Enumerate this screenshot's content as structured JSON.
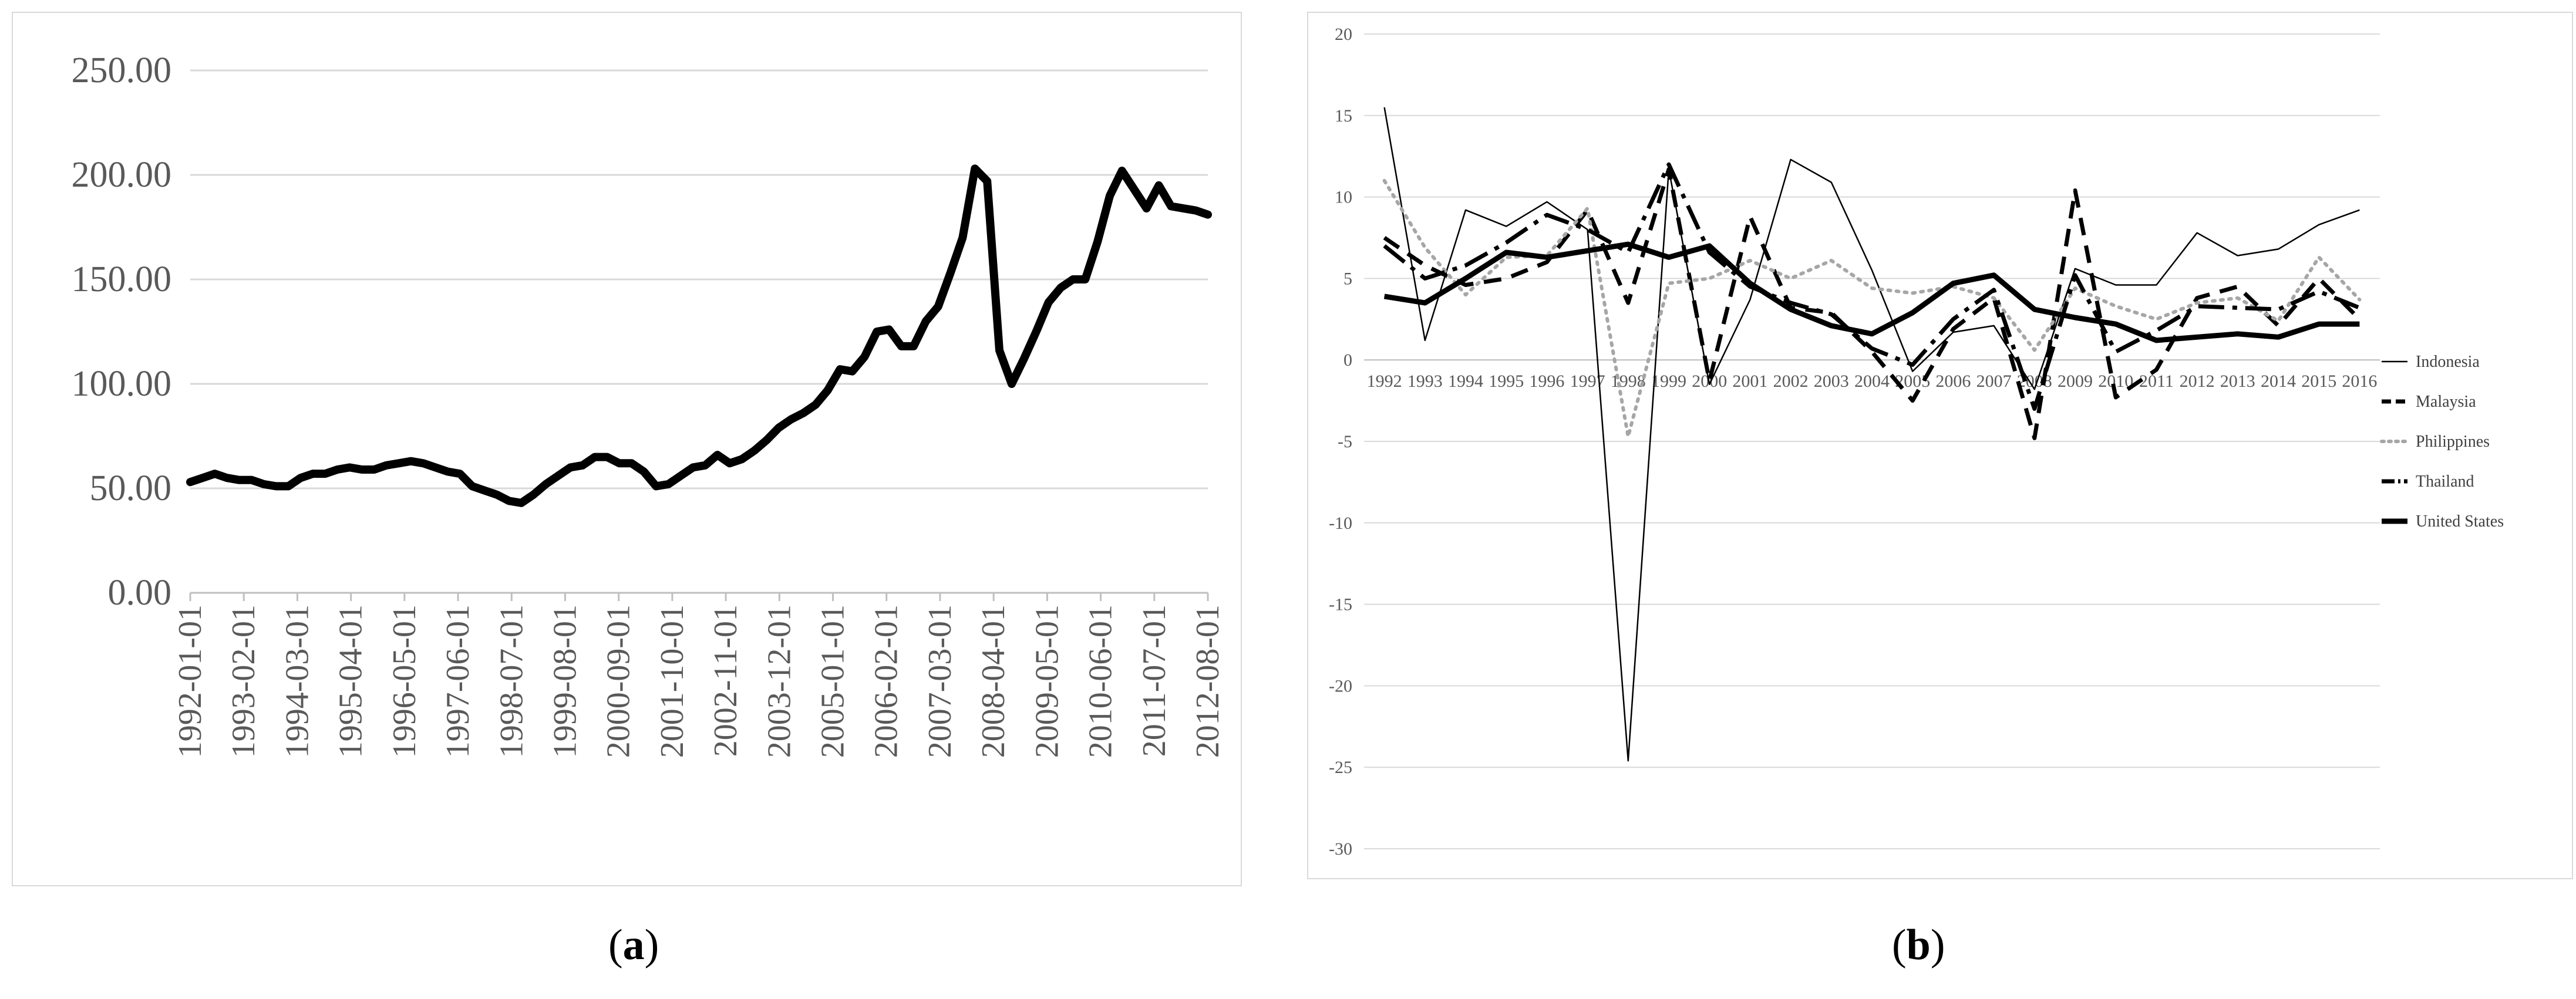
{
  "captions": {
    "a_open": "(",
    "a_letter": "a",
    "a_close": ")",
    "b_open": "(",
    "b_letter": "b",
    "b_close": ")"
  },
  "chart_data": [
    {
      "type": "line",
      "panel": "a",
      "title": "",
      "xlabel": "",
      "ylabel": "",
      "ylim": [
        0,
        250
      ],
      "grid": true,
      "y_ticks": [
        "0.00",
        "50.00",
        "100.00",
        "150.00",
        "200.00",
        "250.00"
      ],
      "x_tick_labels": [
        "1992-01-01",
        "1993-02-01",
        "1994-03-01",
        "1995-04-01",
        "1996-05-01",
        "1997-06-01",
        "1998-07-01",
        "1999-08-01",
        "2000-09-01",
        "2001-10-01",
        "2002-11-01",
        "2003-12-01",
        "2005-01-01",
        "2006-02-01",
        "2007-03-01",
        "2008-04-01",
        "2009-05-01",
        "2010-06-01",
        "2011-07-01",
        "2012-08-01"
      ],
      "line_color": "#000000",
      "x": [
        1992.0,
        1992.25,
        1992.5,
        1992.75,
        1993.0,
        1993.25,
        1993.5,
        1993.75,
        1994.0,
        1994.25,
        1994.5,
        1994.75,
        1995.0,
        1995.25,
        1995.5,
        1995.75,
        1996.0,
        1996.25,
        1996.5,
        1996.75,
        1997.0,
        1997.25,
        1997.5,
        1997.75,
        1998.0,
        1998.25,
        1998.5,
        1998.75,
        1999.0,
        1999.25,
        1999.5,
        1999.75,
        2000.0,
        2000.25,
        2000.5,
        2000.75,
        2001.0,
        2001.25,
        2001.5,
        2001.75,
        2002.0,
        2002.25,
        2002.5,
        2002.75,
        2003.0,
        2003.25,
        2003.5,
        2003.75,
        2004.0,
        2004.25,
        2004.5,
        2004.75,
        2005.0,
        2005.25,
        2005.5,
        2005.75,
        2006.0,
        2006.25,
        2006.5,
        2006.75,
        2007.0,
        2007.25,
        2007.5,
        2007.75,
        2008.0,
        2008.25,
        2008.5,
        2008.75,
        2009.0,
        2009.25,
        2009.5,
        2009.75,
        2010.0,
        2010.25,
        2010.5,
        2010.75,
        2011.0,
        2011.25,
        2011.5,
        2011.75,
        2012.0,
        2012.25,
        2012.5,
        2012.75
      ],
      "values": [
        53,
        55,
        57,
        55,
        54,
        54,
        52,
        51,
        51,
        55,
        57,
        57,
        59,
        60,
        59,
        59,
        61,
        62,
        63,
        62,
        60,
        58,
        57,
        51,
        49,
        47,
        44,
        43,
        47,
        52,
        56,
        60,
        61,
        65,
        65,
        62,
        62,
        58,
        51,
        52,
        56,
        60,
        61,
        66,
        62,
        64,
        68,
        73,
        79,
        83,
        86,
        90,
        97,
        107,
        106,
        113,
        125,
        126,
        118,
        118,
        130,
        137,
        153,
        170,
        203,
        197,
        116,
        100,
        112,
        125,
        139,
        146,
        150,
        150,
        168,
        190,
        202,
        193,
        184,
        195,
        185,
        184,
        183,
        181
      ]
    },
    {
      "type": "line",
      "panel": "b",
      "title": "",
      "xlabel": "",
      "ylabel": "",
      "ylim": [
        -30,
        20
      ],
      "grid": true,
      "legend_position": "right",
      "y_ticks": [
        "20",
        "15",
        "10",
        "5",
        "0",
        "-5",
        "-10",
        "-15",
        "-20",
        "-25",
        "-30"
      ],
      "categories": [
        "1992",
        "1993",
        "1994",
        "1995",
        "1996",
        "1997",
        "1998",
        "1999",
        "2000",
        "2001",
        "2002",
        "2003",
        "2004",
        "2005",
        "2006",
        "2007",
        "2008",
        "2009",
        "2010",
        "2011",
        "2012",
        "2013",
        "2014",
        "2015",
        "2016"
      ],
      "series": [
        {
          "name": "Indonesia",
          "style": "thin-solid",
          "color": "#000000",
          "values": [
            15.5,
            1.2,
            9.2,
            8.2,
            9.7,
            8.0,
            -24.6,
            11.7,
            -1.5,
            3.7,
            12.3,
            10.9,
            5.5,
            -0.7,
            1.7,
            2.1,
            -1.8,
            5.6,
            4.6,
            4.6,
            7.8,
            6.4,
            6.8,
            8.3,
            9.2
          ]
        },
        {
          "name": "Malaysia",
          "style": "dashed",
          "color": "#000000",
          "values": [
            7.5,
            5.8,
            4.6,
            5.0,
            6.0,
            9.2,
            3.5,
            11.7,
            -1.3,
            8.8,
            3.2,
            2.9,
            0.5,
            -2.5,
            1.9,
            3.8,
            -4.8,
            10.4,
            -2.3,
            -0.6,
            3.8,
            4.5,
            2.1,
            5.0,
            2.5
          ]
        },
        {
          "name": "Philippines",
          "style": "dotted",
          "color": "#a6a6a6",
          "values": [
            11.0,
            6.9,
            4.0,
            6.3,
            6.4,
            9.3,
            -4.7,
            4.7,
            5.0,
            6.1,
            5.0,
            6.1,
            4.4,
            4.1,
            4.5,
            3.8,
            0.6,
            4.4,
            3.3,
            2.5,
            3.5,
            3.8,
            2.4,
            6.3,
            3.7
          ]
        },
        {
          "name": "Thailand",
          "style": "long-dash-dot",
          "color": "#000000",
          "values": [
            7.0,
            5.0,
            5.8,
            7.2,
            8.9,
            8.0,
            6.6,
            12.0,
            6.6,
            4.5,
            3.5,
            2.8,
            0.7,
            -0.3,
            2.5,
            4.3,
            -3.0,
            5.2,
            0.5,
            1.8,
            3.3,
            3.2,
            3.1,
            4.2,
            3.2
          ]
        },
        {
          "name": "United States",
          "style": "thick-solid",
          "color": "#000000",
          "values": [
            3.9,
            3.5,
            5.0,
            6.6,
            6.3,
            6.7,
            7.1,
            6.3,
            7.0,
            4.7,
            3.1,
            2.1,
            1.6,
            2.9,
            4.7,
            5.2,
            3.1,
            2.6,
            2.2,
            1.2,
            1.4,
            1.6,
            1.4,
            2.2,
            2.2
          ]
        }
      ]
    }
  ]
}
